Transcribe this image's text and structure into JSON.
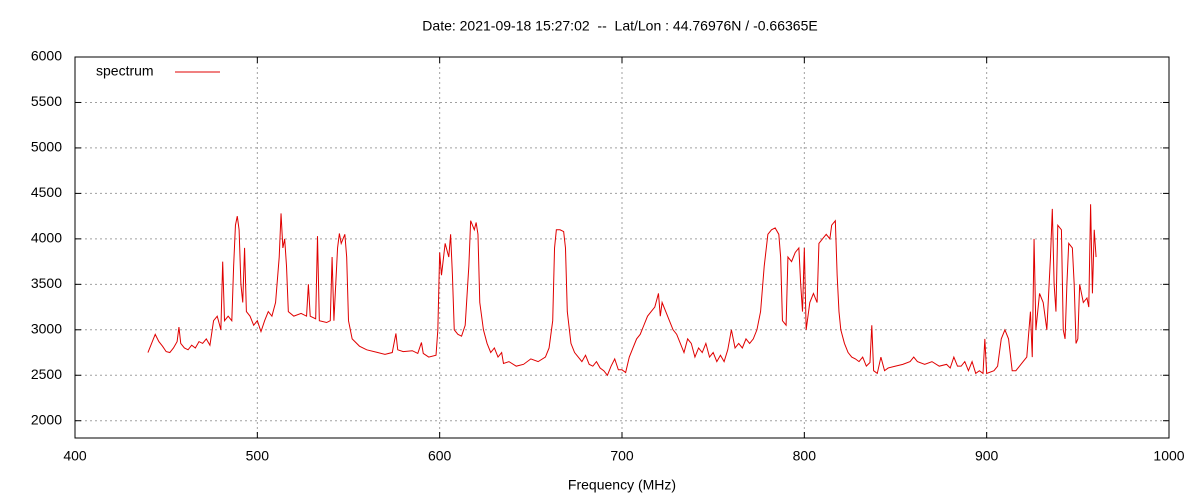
{
  "chart_data": {
    "type": "line",
    "title": "Date: 2021-09-18 15:27:02  --  Lat/Lon : 44.76976N / -0.66365E",
    "xlabel": "Frequency (MHz)",
    "xlim": [
      400,
      1000
    ],
    "xticks": [
      400,
      500,
      600,
      700,
      800,
      900,
      1000
    ],
    "ylim": [
      1810,
      6000
    ],
    "yticks": [
      2000,
      2500,
      3000,
      3500,
      4000,
      4500,
      5000,
      5500,
      6000
    ],
    "grid": true,
    "legend": "top left",
    "x": [
      440,
      442,
      444,
      446,
      448,
      450,
      452,
      454,
      456,
      457,
      458,
      460,
      462,
      464,
      466,
      468,
      470,
      472,
      474,
      476,
      478,
      480,
      481,
      482,
      484,
      486,
      487,
      488,
      489,
      490,
      491,
      492,
      493,
      494,
      496,
      498,
      500,
      502,
      504,
      506,
      508,
      510,
      512,
      513,
      514,
      515,
      516,
      517,
      520,
      524,
      527,
      528,
      529,
      532,
      533,
      534,
      538,
      540,
      541,
      542,
      544,
      545,
      546,
      548,
      549,
      550,
      552,
      556,
      560,
      566,
      570,
      574,
      576,
      577,
      580,
      585,
      588,
      590,
      591,
      594,
      598,
      599,
      600,
      601,
      603,
      605,
      606,
      607,
      608,
      610,
      612,
      614,
      616,
      617,
      619,
      620,
      621,
      622,
      624,
      626,
      628,
      630,
      632,
      634,
      635,
      638,
      642,
      646,
      650,
      654,
      658,
      660,
      662,
      663,
      664,
      666,
      668,
      669,
      670,
      672,
      674,
      676,
      678,
      680,
      682,
      684,
      686,
      688,
      690,
      692,
      694,
      696,
      698,
      700,
      702,
      704,
      706,
      708,
      710,
      712,
      714,
      716,
      718,
      720,
      721,
      722,
      724,
      726,
      728,
      730,
      732,
      734,
      736,
      738,
      740,
      742,
      744,
      746,
      748,
      750,
      752,
      754,
      756,
      758,
      760,
      762,
      764,
      766,
      768,
      770,
      772,
      774,
      776,
      778,
      780,
      782,
      784,
      786,
      787,
      788,
      790,
      791,
      793,
      795,
      797,
      798,
      799,
      800,
      801,
      803,
      805,
      807,
      808,
      810,
      812,
      814,
      815,
      817,
      818,
      819,
      820,
      822,
      824,
      826,
      828,
      830,
      832,
      834,
      836,
      837,
      838,
      840,
      842,
      844,
      846,
      850,
      854,
      858,
      860,
      862,
      866,
      870,
      874,
      878,
      880,
      882,
      884,
      886,
      888,
      890,
      892,
      894,
      896,
      898,
      899,
      900,
      904,
      906,
      908,
      910,
      912,
      914,
      916,
      918,
      920,
      922,
      924,
      925,
      926,
      927,
      929,
      931,
      933,
      935,
      936,
      937,
      938,
      939,
      941,
      942,
      943,
      944,
      945,
      947,
      948,
      949,
      950,
      951,
      953,
      955,
      956,
      957,
      958,
      959,
      960
    ],
    "series": [
      {
        "name": "spectrum",
        "color": "#e00000",
        "values": [
          2750,
          2850,
          2950,
          2870,
          2820,
          2760,
          2750,
          2800,
          2870,
          3030,
          2850,
          2800,
          2780,
          2830,
          2800,
          2870,
          2850,
          2900,
          2830,
          3100,
          3150,
          3000,
          3750,
          3100,
          3150,
          3100,
          3700,
          4150,
          4250,
          4100,
          3500,
          3300,
          3900,
          3200,
          3150,
          3050,
          3100,
          2980,
          3100,
          3200,
          3150,
          3300,
          3800,
          4280,
          3900,
          4000,
          3700,
          3200,
          3150,
          3180,
          3150,
          3500,
          3150,
          3120,
          4030,
          3100,
          3080,
          3100,
          3800,
          3100,
          3900,
          4060,
          3950,
          4050,
          3800,
          3100,
          2900,
          2820,
          2780,
          2750,
          2730,
          2750,
          2960,
          2780,
          2760,
          2770,
          2740,
          2860,
          2740,
          2700,
          2720,
          3000,
          3850,
          3600,
          3950,
          3800,
          4050,
          3600,
          3000,
          2950,
          2930,
          3050,
          3700,
          4200,
          4100,
          4180,
          4050,
          3300,
          3000,
          2850,
          2750,
          2800,
          2700,
          2750,
          2630,
          2650,
          2600,
          2620,
          2680,
          2650,
          2700,
          2800,
          3100,
          3900,
          4100,
          4100,
          4080,
          3900,
          3200,
          2850,
          2750,
          2700,
          2650,
          2720,
          2620,
          2600,
          2650,
          2580,
          2550,
          2500,
          2600,
          2680,
          2560,
          2560,
          2530,
          2700,
          2800,
          2900,
          2950,
          3050,
          3150,
          3200,
          3250,
          3400,
          3150,
          3300,
          3200,
          3100,
          3000,
          2950,
          2850,
          2750,
          2900,
          2850,
          2700,
          2800,
          2750,
          2850,
          2700,
          2750,
          2650,
          2720,
          2650,
          2780,
          3000,
          2800,
          2850,
          2800,
          2900,
          2850,
          2900,
          3000,
          3200,
          3700,
          4050,
          4100,
          4120,
          4050,
          3800,
          3100,
          3050,
          3800,
          3750,
          3850,
          3900,
          3500,
          3200,
          3900,
          3000,
          3300,
          3400,
          3300,
          3950,
          4000,
          4050,
          4000,
          4150,
          4200,
          3600,
          3200,
          3000,
          2850,
          2750,
          2700,
          2680,
          2650,
          2700,
          2600,
          2640,
          3050,
          2550,
          2520,
          2700,
          2550,
          2580,
          2600,
          2620,
          2650,
          2700,
          2650,
          2620,
          2650,
          2600,
          2620,
          2580,
          2700,
          2600,
          2600,
          2650,
          2550,
          2650,
          2520,
          2550,
          2520,
          2900,
          2520,
          2550,
          2600,
          2900,
          3000,
          2900,
          2550,
          2550,
          2600,
          2650,
          2700,
          3200,
          2700,
          4000,
          3000,
          3400,
          3300,
          3000,
          3800,
          4330,
          3500,
          3200,
          4150,
          4100,
          3000,
          2900,
          3500,
          3950,
          3900,
          3500,
          2850,
          2900,
          3500,
          3300,
          3350,
          3250,
          4380,
          3400,
          4100,
          3800
        ]
      }
    ]
  }
}
